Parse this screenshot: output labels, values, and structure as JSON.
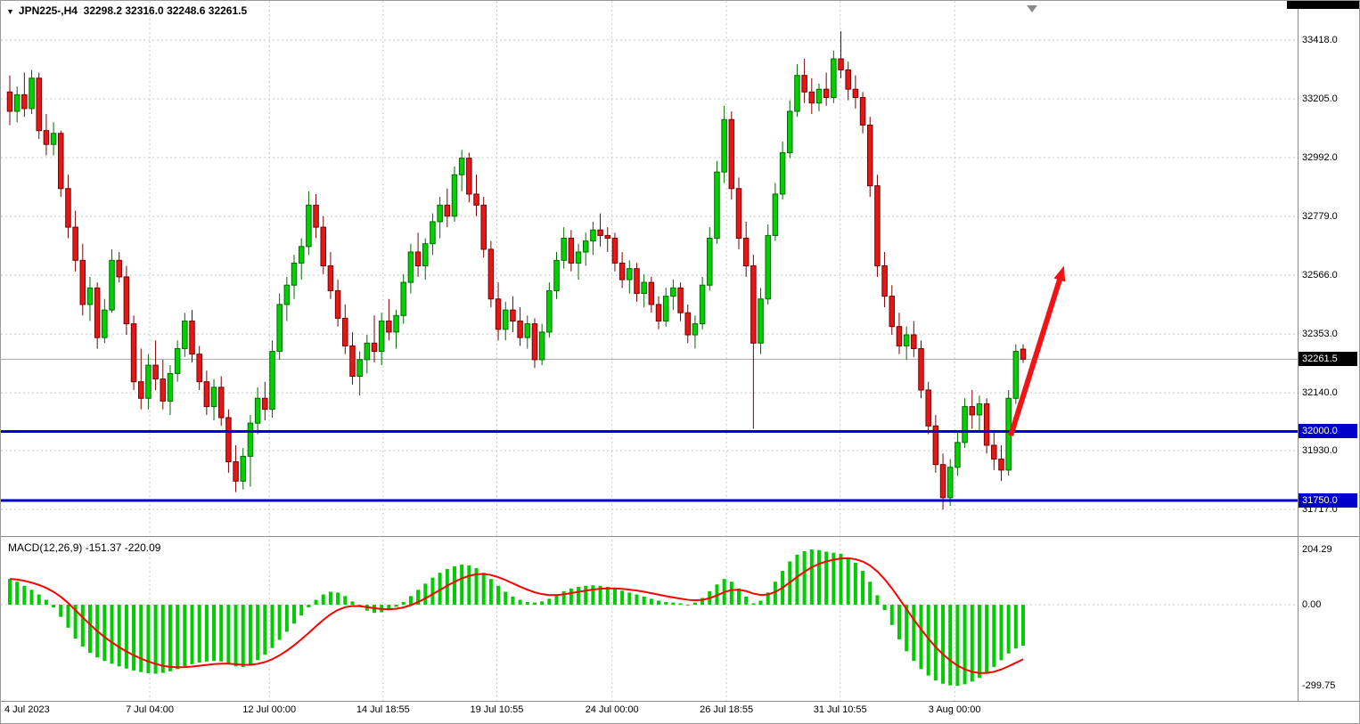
{
  "header": {
    "dropdown_icon": "▼",
    "symbol_tf": "JPN225-,H4",
    "ohlc": "32298.2 32316.0 32248.6 32261.5"
  },
  "colors": {
    "background": "#ffffff",
    "grid": "#c9c9c9",
    "separator": "#8a8a8a",
    "candle_up_fill": "#00d200",
    "candle_up_stroke": "#006a00",
    "candle_down_fill": "#e61717",
    "candle_down_stroke": "#7a0000",
    "macd_histogram": "#00cc00",
    "macd_signal": "#ff0000",
    "current_price_line": "#a8a8a8",
    "badge_current_bg": "#000000",
    "axis_text": "#000000"
  },
  "chart_data": {
    "type": "candlestick+macd",
    "symbol": "JPN225-",
    "timeframe": "H4",
    "ohlc_current": {
      "open": 32298.2,
      "high": 32316.0,
      "low": 32248.6,
      "close": 32261.5
    },
    "price_axis": {
      "labels": [
        "33418.0",
        "33205.0",
        "32992.0",
        "32779.0",
        "32566.0",
        "32353.0",
        "32140.0",
        "31930.0",
        "31717.0"
      ],
      "current_price": 32261.5,
      "current_price_label": "32261.5",
      "ylim": [
        31624,
        33560
      ]
    },
    "x_axis": {
      "labels": [
        {
          "text": "4 Jul 2023",
          "bar": 0
        },
        {
          "text": "7 Jul 04:00",
          "bar": 19.2
        },
        {
          "text": "12 Jul 00:00",
          "bar": 35.6
        },
        {
          "text": "14 Jul 18:55",
          "bar": 51.2
        },
        {
          "text": "19 Jul 10:55",
          "bar": 66.8
        },
        {
          "text": "24 Jul 00:00",
          "bar": 82.6
        },
        {
          "text": "26 Jul 18:55",
          "bar": 98.3
        },
        {
          "text": "31 Jul 10:55",
          "bar": 113.9
        },
        {
          "text": "3 Aug 00:00",
          "bar": 129.6
        }
      ]
    },
    "hlines": [
      {
        "price": 32000.0,
        "label": "32000.0",
        "color": "#0000c8",
        "width": 3
      },
      {
        "price": 31750.0,
        "label": "31750.0",
        "color": "#0000c8",
        "width": 3
      }
    ],
    "arrow": {
      "from_bar": 137.3,
      "from_price": 31985,
      "to_bar": 144.6,
      "to_price": 32600,
      "color": "#f01414"
    },
    "candles": [
      [
        33230,
        33290,
        33110,
        33160
      ],
      [
        33160,
        33250,
        33120,
        33220
      ],
      [
        33220,
        33300,
        33140,
        33170
      ],
      [
        33170,
        33310,
        33150,
        33280
      ],
      [
        33280,
        33300,
        33060,
        33090
      ],
      [
        33090,
        33150,
        33000,
        33040
      ],
      [
        33040,
        33120,
        33000,
        33080
      ],
      [
        33080,
        33090,
        32850,
        32880
      ],
      [
        32880,
        32930,
        32700,
        32740
      ],
      [
        32740,
        32800,
        32580,
        32620
      ],
      [
        32620,
        32680,
        32420,
        32460
      ],
      [
        32460,
        32560,
        32400,
        32520
      ],
      [
        32520,
        32540,
        32300,
        32340
      ],
      [
        32340,
        32480,
        32320,
        32440
      ],
      [
        32440,
        32660,
        32430,
        32620
      ],
      [
        32620,
        32650,
        32540,
        32560
      ],
      [
        32560,
        32600,
        32350,
        32390
      ],
      [
        32390,
        32420,
        32150,
        32180
      ],
      [
        32180,
        32300,
        32080,
        32120
      ],
      [
        32120,
        32280,
        32080,
        32240
      ],
      [
        32240,
        32330,
        32150,
        32190
      ],
      [
        32190,
        32260,
        32080,
        32110
      ],
      [
        32110,
        32240,
        32060,
        32210
      ],
      [
        32210,
        32330,
        32180,
        32300
      ],
      [
        32300,
        32430,
        32270,
        32400
      ],
      [
        32400,
        32440,
        32250,
        32280
      ],
      [
        32280,
        32310,
        32150,
        32180
      ],
      [
        32180,
        32220,
        32060,
        32090
      ],
      [
        32090,
        32190,
        32040,
        32160
      ],
      [
        32160,
        32200,
        32020,
        32050
      ],
      [
        32050,
        32080,
        31850,
        31890
      ],
      [
        31890,
        31950,
        31780,
        31820
      ],
      [
        31820,
        31940,
        31790,
        31910
      ],
      [
        31910,
        32060,
        31800,
        32030
      ],
      [
        32030,
        32160,
        31990,
        32120
      ],
      [
        32120,
        32180,
        32040,
        32080
      ],
      [
        32080,
        32330,
        32050,
        32290
      ],
      [
        32290,
        32500,
        32260,
        32460
      ],
      [
        32460,
        32560,
        32400,
        32530
      ],
      [
        32530,
        32640,
        32480,
        32610
      ],
      [
        32610,
        32700,
        32550,
        32670
      ],
      [
        32670,
        32870,
        32640,
        32820
      ],
      [
        32820,
        32860,
        32700,
        32740
      ],
      [
        32740,
        32780,
        32570,
        32600
      ],
      [
        32600,
        32650,
        32480,
        32510
      ],
      [
        32510,
        32550,
        32380,
        32410
      ],
      [
        32410,
        32460,
        32280,
        32310
      ],
      [
        32310,
        32360,
        32170,
        32200
      ],
      [
        32200,
        32290,
        32130,
        32260
      ],
      [
        32260,
        32350,
        32210,
        32320
      ],
      [
        32320,
        32420,
        32250,
        32290
      ],
      [
        32290,
        32430,
        32240,
        32400
      ],
      [
        32400,
        32480,
        32330,
        32360
      ],
      [
        32360,
        32440,
        32300,
        32420
      ],
      [
        32420,
        32570,
        32390,
        32540
      ],
      [
        32540,
        32680,
        32500,
        32650
      ],
      [
        32650,
        32720,
        32560,
        32600
      ],
      [
        32600,
        32700,
        32550,
        32680
      ],
      [
        32680,
        32790,
        32640,
        32760
      ],
      [
        32760,
        32850,
        32700,
        32820
      ],
      [
        32820,
        32880,
        32740,
        32780
      ],
      [
        32780,
        32960,
        32760,
        32930
      ],
      [
        32930,
        33020,
        32870,
        32990
      ],
      [
        32990,
        33010,
        32830,
        32860
      ],
      [
        32860,
        32930,
        32780,
        32820
      ],
      [
        32820,
        32850,
        32630,
        32660
      ],
      [
        32660,
        32690,
        32450,
        32480
      ],
      [
        32480,
        32540,
        32330,
        32370
      ],
      [
        32370,
        32470,
        32330,
        32440
      ],
      [
        32440,
        32490,
        32360,
        32400
      ],
      [
        32400,
        32450,
        32310,
        32340
      ],
      [
        32340,
        32420,
        32300,
        32390
      ],
      [
        32390,
        32410,
        32230,
        32260
      ],
      [
        32260,
        32390,
        32240,
        32360
      ],
      [
        32360,
        32540,
        32340,
        32510
      ],
      [
        32510,
        32650,
        32480,
        32620
      ],
      [
        32620,
        32740,
        32590,
        32700
      ],
      [
        32700,
        32730,
        32580,
        32610
      ],
      [
        32610,
        32680,
        32550,
        32650
      ],
      [
        32650,
        32720,
        32600,
        32690
      ],
      [
        32690,
        32760,
        32640,
        32730
      ],
      [
        32730,
        32790,
        32670,
        32710
      ],
      [
        32710,
        32740,
        32650,
        32700
      ],
      [
        32700,
        32720,
        32580,
        32610
      ],
      [
        32610,
        32650,
        32520,
        32550
      ],
      [
        32550,
        32620,
        32500,
        32590
      ],
      [
        32590,
        32610,
        32470,
        32500
      ],
      [
        32500,
        32570,
        32450,
        32540
      ],
      [
        32540,
        32560,
        32430,
        32460
      ],
      [
        32460,
        32490,
        32370,
        32400
      ],
      [
        32400,
        32520,
        32380,
        32490
      ],
      [
        32490,
        32550,
        32440,
        32520
      ],
      [
        32520,
        32540,
        32400,
        32430
      ],
      [
        32430,
        32460,
        32320,
        32350
      ],
      [
        32350,
        32420,
        32300,
        32390
      ],
      [
        32390,
        32560,
        32370,
        32530
      ],
      [
        32530,
        32740,
        32510,
        32700
      ],
      [
        32700,
        32980,
        32680,
        32940
      ],
      [
        32940,
        33180,
        32900,
        33130
      ],
      [
        33130,
        33160,
        32840,
        32880
      ],
      [
        32880,
        32920,
        32660,
        32700
      ],
      [
        32700,
        32760,
        32560,
        32600
      ],
      [
        32600,
        32640,
        32010,
        32320
      ],
      [
        32320,
        32520,
        32280,
        32480
      ],
      [
        32480,
        32750,
        32460,
        32710
      ],
      [
        32710,
        32900,
        32690,
        32860
      ],
      [
        32860,
        33050,
        32840,
        33010
      ],
      [
        33010,
        33200,
        32990,
        33160
      ],
      [
        33160,
        33330,
        33140,
        33290
      ],
      [
        33290,
        33350,
        33190,
        33230
      ],
      [
        33230,
        33280,
        33150,
        33190
      ],
      [
        33190,
        33260,
        33160,
        33240
      ],
      [
        33240,
        33300,
        33180,
        33210
      ],
      [
        33210,
        33380,
        33190,
        33350
      ],
      [
        33350,
        33450,
        33280,
        33310
      ],
      [
        33310,
        33340,
        33200,
        33240
      ],
      [
        33240,
        33290,
        33170,
        33210
      ],
      [
        33210,
        33230,
        33080,
        33110
      ],
      [
        33110,
        33140,
        32850,
        32890
      ],
      [
        32890,
        32930,
        32560,
        32600
      ],
      [
        32600,
        32650,
        32450,
        32490
      ],
      [
        32490,
        32530,
        32350,
        32380
      ],
      [
        32380,
        32430,
        32280,
        32310
      ],
      [
        32310,
        32380,
        32260,
        32350
      ],
      [
        32350,
        32400,
        32270,
        32300
      ],
      [
        32300,
        32330,
        32120,
        32150
      ],
      [
        32150,
        32180,
        31990,
        32020
      ],
      [
        32020,
        32060,
        31850,
        31880
      ],
      [
        31880,
        31920,
        31717,
        31760
      ],
      [
        31760,
        31900,
        31730,
        31870
      ],
      [
        31870,
        32000,
        31840,
        31960
      ],
      [
        31960,
        32120,
        31940,
        32090
      ],
      [
        32090,
        32150,
        32010,
        32060
      ],
      [
        32060,
        32130,
        32000,
        32100
      ],
      [
        32100,
        32120,
        31920,
        31950
      ],
      [
        31950,
        32000,
        31860,
        31900
      ],
      [
        31900,
        31950,
        31820,
        31860
      ],
      [
        31860,
        32150,
        31840,
        32120
      ],
      [
        32120,
        32316,
        32100,
        32290
      ],
      [
        32298.2,
        32316.0,
        32248.6,
        32261.5
      ]
    ],
    "macd": {
      "label": "MACD(12,26,9)",
      "values_text": "-151.37 -220.09",
      "signal_period": 9,
      "axis_labels": [
        "204.29",
        "0.00",
        "-299.75"
      ],
      "ylim": [
        -352,
        247
      ],
      "histogram": [
        95,
        85,
        70,
        55,
        38,
        18,
        -10,
        -45,
        -85,
        -125,
        -155,
        -178,
        -195,
        -208,
        -218,
        -228,
        -236,
        -243,
        -249,
        -253,
        -255,
        -252,
        -246,
        -238,
        -228,
        -220,
        -214,
        -210,
        -208,
        -210,
        -218,
        -228,
        -230,
        -222,
        -205,
        -185,
        -160,
        -130,
        -100,
        -70,
        -40,
        -10,
        18,
        38,
        48,
        45,
        32,
        12,
        -8,
        -22,
        -30,
        -28,
        -20,
        -8,
        10,
        32,
        55,
        78,
        100,
        118,
        132,
        142,
        148,
        145,
        135,
        118,
        95,
        70,
        48,
        30,
        18,
        10,
        8,
        12,
        22,
        36,
        50,
        60,
        66,
        70,
        72,
        70,
        66,
        60,
        52,
        45,
        38,
        30,
        22,
        15,
        10,
        8,
        5,
        0,
        8,
        25,
        50,
        75,
        95,
        85,
        60,
        30,
        5,
        15,
        45,
        85,
        125,
        160,
        185,
        198,
        204.29,
        202,
        196,
        192,
        188,
        175,
        155,
        125,
        85,
        35,
        -20,
        -75,
        -128,
        -172,
        -208,
        -238,
        -262,
        -280,
        -292,
        -298,
        -299.75,
        -294,
        -284,
        -270,
        -252,
        -230,
        -205,
        -180,
        -162,
        -151.37
      ]
    }
  }
}
